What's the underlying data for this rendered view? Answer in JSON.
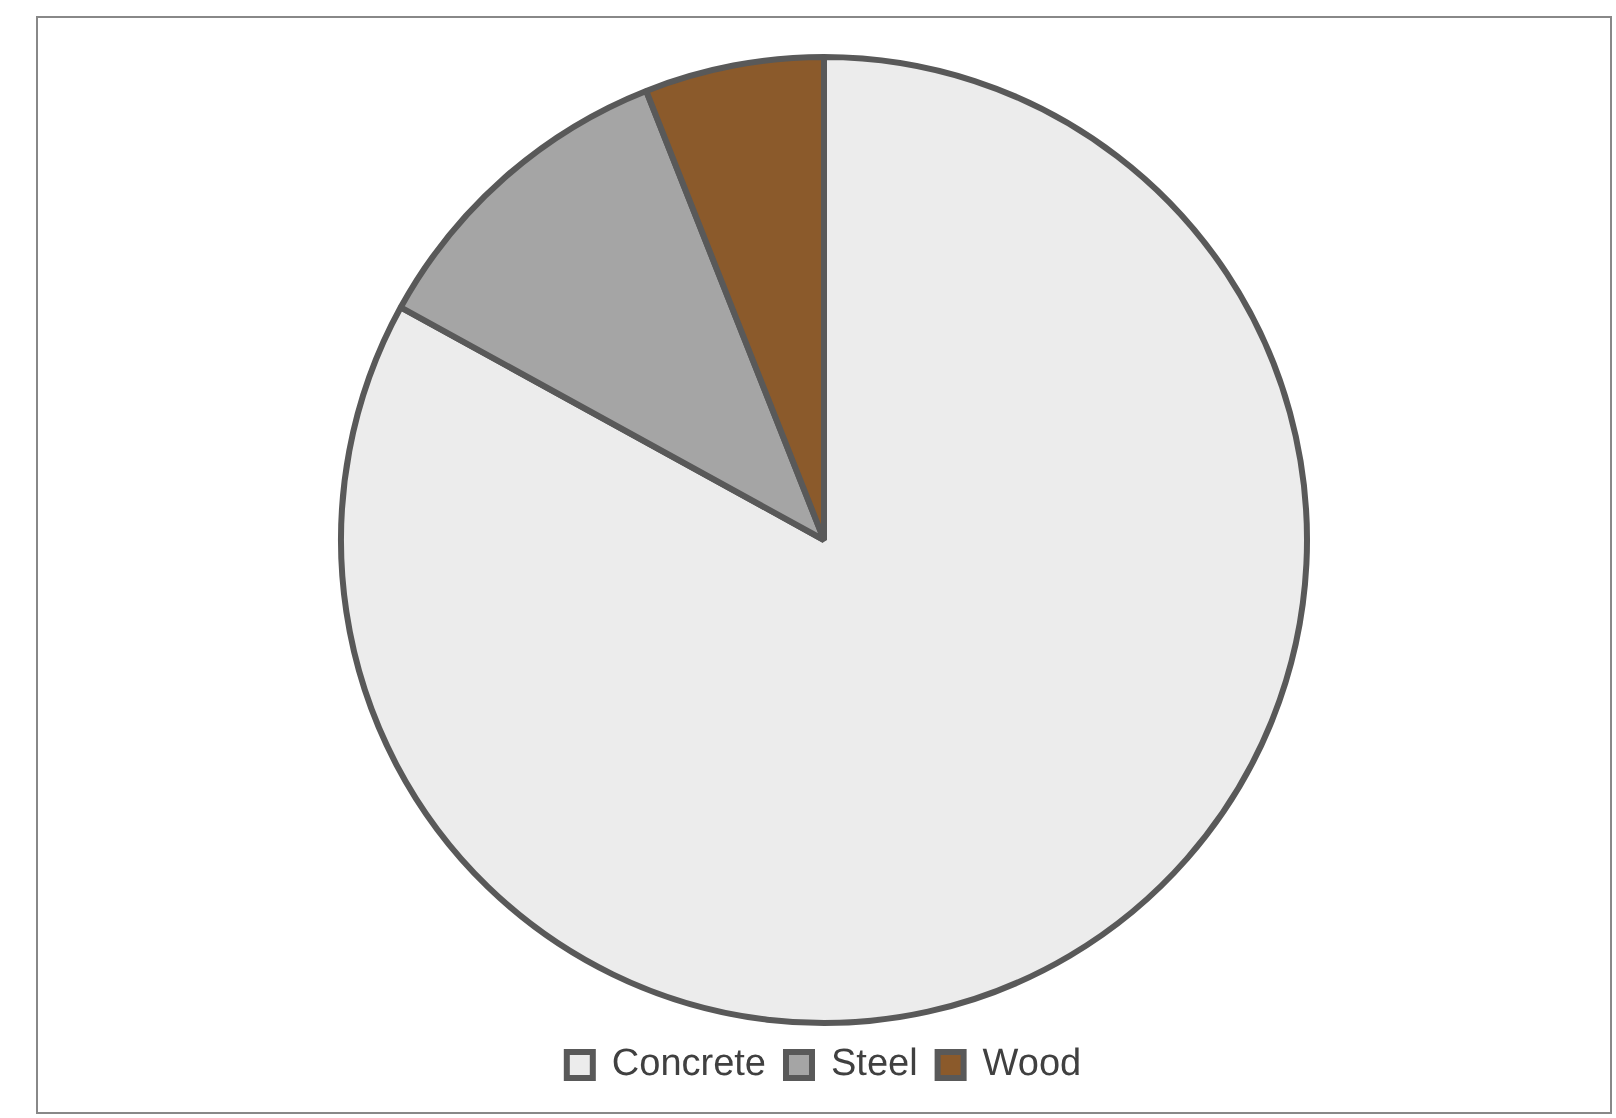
{
  "chart_data": {
    "type": "pie",
    "categories": [
      "Concrete",
      "Steel",
      "Wood"
    ],
    "values": [
      83,
      11,
      6
    ],
    "colors": [
      "#ececec",
      "#a5a5a5",
      "#8b5a2b"
    ],
    "legend": "bottom"
  }
}
